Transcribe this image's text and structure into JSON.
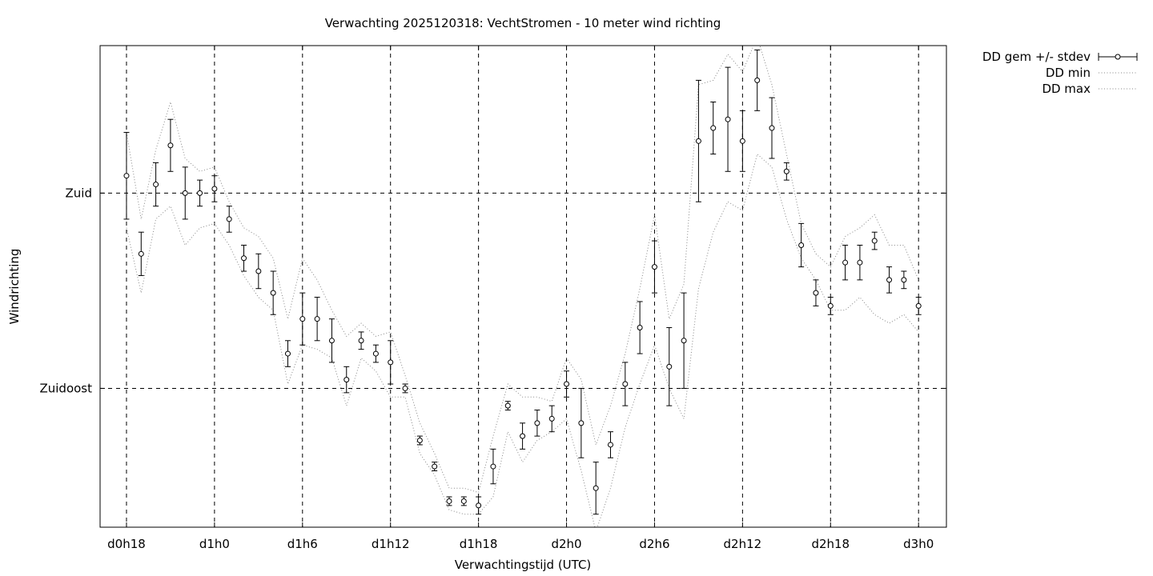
{
  "chart_data": {
    "type": "line",
    "title": "Verwachting 2025120318: VechtStromen - 10 meter wind richting",
    "xlabel": "Verwachtingstijd (UTC)",
    "ylabel": "Windrichting",
    "x_ticks": [
      "d0h18",
      "d1h0",
      "d1h6",
      "d1h12",
      "d1h18",
      "d2h0",
      "d2h6",
      "d2h12",
      "d2h18",
      "d3h0"
    ],
    "y_ticks": [
      {
        "value": 135,
        "label": "Zuidoost"
      },
      {
        "value": 180,
        "label": "Zuid"
      }
    ],
    "x_range_hours": [
      16.2,
      73.9
    ],
    "y_range_deg": [
      103,
      214
    ],
    "grid": true,
    "legend_position": "outside-top-right",
    "series": [
      {
        "name": "DD gem +/- stdev",
        "x": [
          18,
          19,
          20,
          21,
          22,
          23,
          24,
          25,
          26,
          27,
          28,
          29,
          30,
          31,
          32,
          33,
          34,
          35,
          36,
          37,
          38,
          39,
          40,
          41,
          42,
          43,
          44,
          45,
          46,
          47,
          48,
          49,
          50,
          51,
          52,
          53,
          54,
          55,
          56,
          57,
          58,
          59,
          60,
          61,
          62,
          63,
          64,
          65,
          66,
          67,
          68,
          69,
          70,
          71,
          72
        ],
        "mean": [
          184,
          166,
          182,
          191,
          180,
          180,
          181,
          174,
          165,
          162,
          157,
          143,
          151,
          151,
          146,
          137,
          146,
          143,
          141,
          135,
          123,
          117,
          109,
          109,
          108,
          117,
          131,
          124,
          127,
          128,
          136,
          127,
          112,
          122,
          136,
          149,
          163,
          140,
          146,
          192,
          195,
          197,
          192,
          206,
          195,
          185,
          168,
          157,
          154,
          164,
          164,
          169,
          160,
          160,
          154
        ],
        "stdev": [
          10,
          5,
          5,
          6,
          6,
          3,
          3,
          3,
          3,
          4,
          5,
          3,
          6,
          5,
          5,
          3,
          2,
          2,
          5,
          1,
          1,
          1,
          1,
          1,
          2,
          4,
          1,
          3,
          3,
          3,
          3,
          8,
          6,
          3,
          5,
          6,
          6,
          9,
          11,
          14,
          6,
          12,
          7,
          7,
          7,
          2,
          5,
          3,
          2,
          4,
          4,
          2,
          3,
          2,
          2
        ]
      },
      {
        "name": "DD min",
        "x": [
          18,
          19,
          20,
          21,
          22,
          23,
          24,
          25,
          26,
          27,
          28,
          29,
          30,
          31,
          32,
          33,
          34,
          35,
          36,
          37,
          38,
          39,
          40,
          41,
          42,
          43,
          44,
          45,
          46,
          47,
          48,
          49,
          50,
          51,
          52,
          53,
          54,
          55,
          56,
          57,
          58,
          59,
          60,
          61,
          62,
          63,
          64,
          65,
          66,
          67,
          68,
          69,
          70,
          71,
          72
        ],
        "values": [
          172,
          157,
          174,
          177,
          168,
          172,
          173,
          168,
          161,
          156,
          153,
          136,
          145,
          144,
          142,
          131,
          142,
          139,
          133,
          133,
          120,
          115,
          107,
          106,
          106,
          110,
          125,
          118,
          123,
          125,
          128,
          116,
          102,
          112,
          126,
          136,
          145,
          135,
          128,
          158,
          171,
          178,
          176,
          189,
          186,
          174,
          165,
          160,
          153,
          153,
          156,
          152,
          150,
          152,
          148
        ]
      },
      {
        "name": "DD max",
        "x": [
          18,
          19,
          20,
          21,
          22,
          23,
          24,
          25,
          26,
          27,
          28,
          29,
          30,
          31,
          32,
          33,
          34,
          35,
          36,
          37,
          38,
          39,
          40,
          41,
          42,
          43,
          44,
          45,
          46,
          47,
          48,
          49,
          50,
          51,
          52,
          53,
          54,
          55,
          56,
          57,
          58,
          59,
          60,
          61,
          62,
          63,
          64,
          65,
          66,
          67,
          68,
          69,
          70,
          71,
          72
        ],
        "values": [
          194,
          174,
          190,
          201,
          188,
          185,
          186,
          178,
          172,
          170,
          165,
          151,
          165,
          160,
          153,
          147,
          150,
          147,
          148,
          138,
          127,
          120,
          112,
          112,
          111,
          124,
          136,
          133,
          133,
          132,
          142,
          137,
          122,
          131,
          143,
          158,
          175,
          151,
          159,
          205,
          206,
          212,
          208,
          216,
          205,
          189,
          173,
          166,
          163,
          170,
          172,
          175,
          168,
          168,
          160
        ]
      }
    ]
  }
}
